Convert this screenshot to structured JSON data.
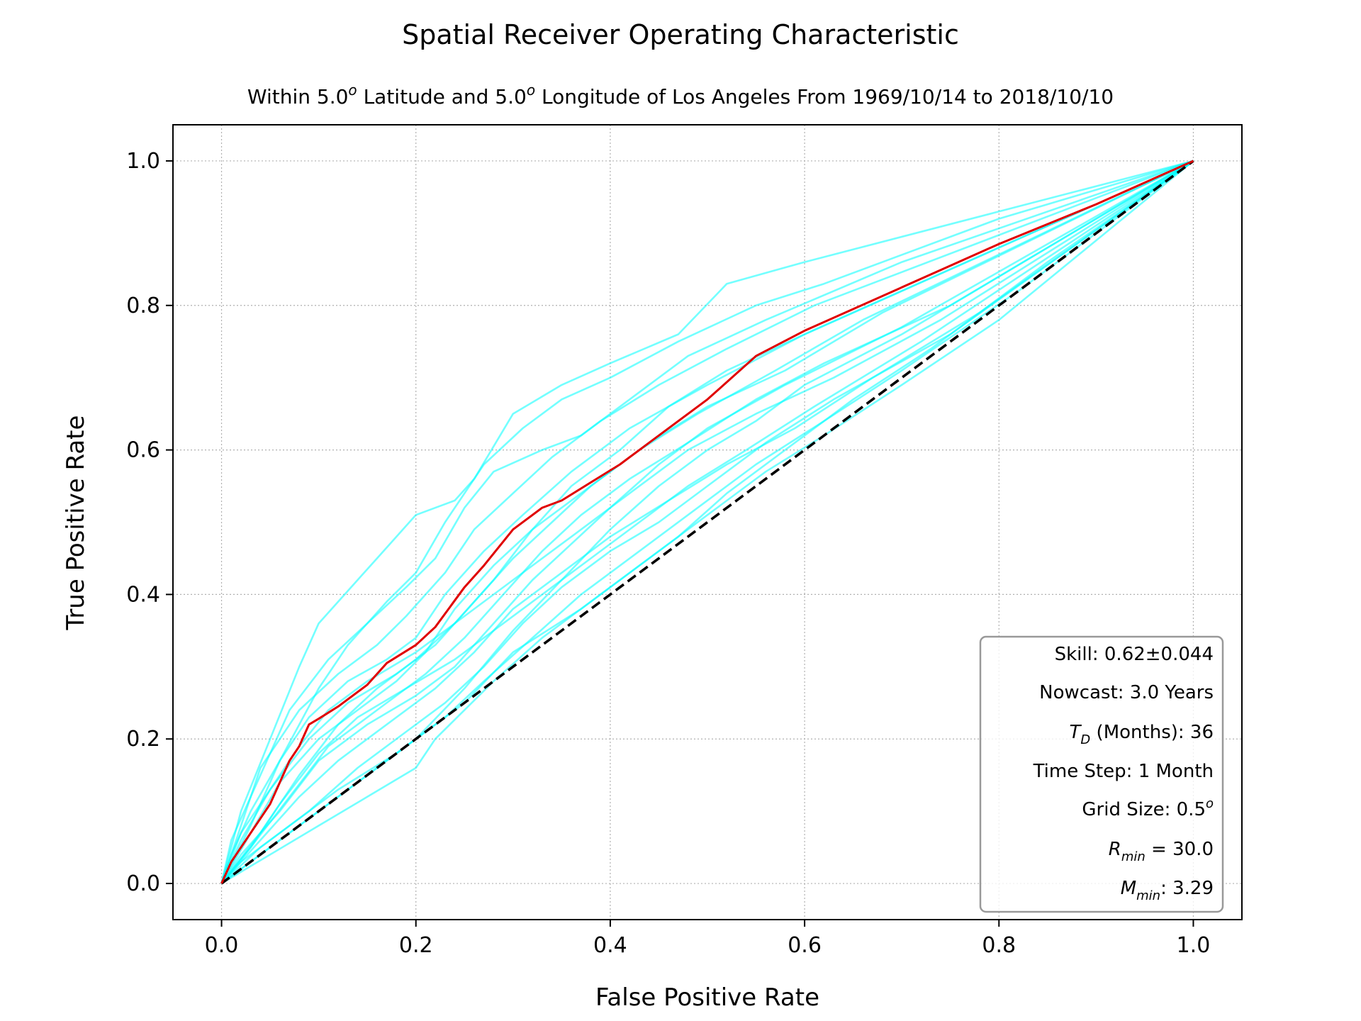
{
  "chart_data": {
    "type": "line",
    "title": "Spatial Receiver Operating Characteristic",
    "subtitle": {
      "prefix": "Within 5.0",
      "sup1": "o",
      "middle": " Latitude and 5.0",
      "sup2": "o",
      "suffix": " Longitude of Los Angeles From 1969/10/14 to 2018/10/10"
    },
    "xlabel": "False Positive Rate",
    "ylabel": "True Positive Rate",
    "xlim": [
      -0.05,
      1.05
    ],
    "ylim": [
      -0.05,
      1.05
    ],
    "xticks": [
      "0.0",
      "0.2",
      "0.4",
      "0.6",
      "0.8",
      "1.0"
    ],
    "yticks": [
      "0.0",
      "0.2",
      "0.4",
      "0.6",
      "0.8",
      "1.0"
    ],
    "grid": true,
    "colors": {
      "mean": "#e00000",
      "random": "#00ffff",
      "diagonal": "#000000"
    },
    "mean_curve": {
      "x": [
        0,
        0.01,
        0.02,
        0.03,
        0.04,
        0.05,
        0.06,
        0.07,
        0.08,
        0.09,
        0.1,
        0.12,
        0.15,
        0.17,
        0.2,
        0.22,
        0.25,
        0.27,
        0.3,
        0.33,
        0.35,
        0.38,
        0.41,
        0.45,
        0.5,
        0.55,
        0.6,
        0.7,
        0.8,
        0.9,
        1.0
      ],
      "y": [
        0,
        0.03,
        0.05,
        0.07,
        0.09,
        0.11,
        0.14,
        0.17,
        0.19,
        0.22,
        0.228,
        0.245,
        0.275,
        0.305,
        0.33,
        0.355,
        0.41,
        0.44,
        0.49,
        0.52,
        0.53,
        0.555,
        0.58,
        0.62,
        0.67,
        0.73,
        0.765,
        0.825,
        0.885,
        0.94,
        1.0
      ]
    },
    "diagonal": {
      "x": [
        0,
        1
      ],
      "y": [
        0,
        1
      ]
    },
    "random_curves": [
      {
        "x": [
          0,
          0.02,
          0.05,
          0.08,
          0.1,
          0.14,
          0.16,
          0.2,
          0.24,
          0.26,
          0.3,
          0.35,
          0.4,
          0.47,
          0.52,
          0.6,
          0.8,
          1.0
        ],
        "y": [
          0,
          0.1,
          0.2,
          0.3,
          0.36,
          0.42,
          0.45,
          0.51,
          0.53,
          0.56,
          0.65,
          0.69,
          0.72,
          0.76,
          0.83,
          0.86,
          0.93,
          1.0
        ]
      },
      {
        "x": [
          0,
          0.03,
          0.06,
          0.1,
          0.13,
          0.17,
          0.2,
          0.23,
          0.27,
          0.31,
          0.35,
          0.4,
          0.47,
          0.55,
          0.62,
          0.8,
          1.0
        ],
        "y": [
          0,
          0.08,
          0.17,
          0.27,
          0.33,
          0.39,
          0.43,
          0.5,
          0.58,
          0.63,
          0.67,
          0.7,
          0.75,
          0.8,
          0.83,
          0.92,
          1.0
        ]
      },
      {
        "x": [
          0,
          0.01,
          0.04,
          0.07,
          0.11,
          0.15,
          0.19,
          0.22,
          0.25,
          0.28,
          0.33,
          0.37,
          0.42,
          0.48,
          0.56,
          0.7,
          1.0
        ],
        "y": [
          0,
          0.06,
          0.15,
          0.24,
          0.31,
          0.36,
          0.41,
          0.45,
          0.52,
          0.57,
          0.6,
          0.62,
          0.67,
          0.73,
          0.78,
          0.86,
          1.0
        ]
      },
      {
        "x": [
          0,
          0.04,
          0.08,
          0.12,
          0.16,
          0.2,
          0.24,
          0.28,
          0.32,
          0.36,
          0.41,
          0.46,
          0.52,
          0.6,
          0.7,
          1.0
        ],
        "y": [
          0,
          0.07,
          0.15,
          0.22,
          0.27,
          0.31,
          0.36,
          0.42,
          0.49,
          0.55,
          0.6,
          0.66,
          0.71,
          0.76,
          0.82,
          1.0
        ]
      },
      {
        "x": [
          0,
          0.03,
          0.07,
          0.11,
          0.16,
          0.21,
          0.25,
          0.29,
          0.33,
          0.37,
          0.42,
          0.48,
          0.55,
          0.62,
          0.75,
          1.0
        ],
        "y": [
          0,
          0.05,
          0.12,
          0.19,
          0.24,
          0.29,
          0.34,
          0.4,
          0.46,
          0.51,
          0.56,
          0.61,
          0.67,
          0.72,
          0.8,
          1.0
        ]
      },
      {
        "x": [
          0,
          0.02,
          0.06,
          0.1,
          0.15,
          0.2,
          0.24,
          0.28,
          0.32,
          0.36,
          0.4,
          0.45,
          0.5,
          0.58,
          0.7,
          1.0
        ],
        "y": [
          0,
          0.04,
          0.1,
          0.17,
          0.22,
          0.26,
          0.3,
          0.36,
          0.42,
          0.47,
          0.52,
          0.58,
          0.63,
          0.69,
          0.77,
          1.0
        ]
      },
      {
        "x": [
          0,
          0.04,
          0.09,
          0.14,
          0.19,
          0.23,
          0.27,
          0.31,
          0.35,
          0.4,
          0.45,
          0.5,
          0.56,
          0.63,
          0.75,
          1.0
        ],
        "y": [
          0,
          0.05,
          0.1,
          0.16,
          0.21,
          0.25,
          0.3,
          0.36,
          0.41,
          0.46,
          0.5,
          0.55,
          0.61,
          0.67,
          0.76,
          1.0
        ]
      },
      {
        "x": [
          0,
          0.02,
          0.05,
          0.09,
          0.13,
          0.18,
          0.22,
          0.26,
          0.3,
          0.34,
          0.38,
          0.44,
          0.5,
          0.58,
          0.68,
          1.0
        ],
        "y": [
          0,
          0.06,
          0.13,
          0.2,
          0.25,
          0.29,
          0.33,
          0.39,
          0.45,
          0.5,
          0.55,
          0.61,
          0.66,
          0.71,
          0.79,
          1.0
        ]
      },
      {
        "x": [
          0,
          0.05,
          0.1,
          0.15,
          0.2,
          0.25,
          0.3,
          0.35,
          0.4,
          0.45,
          0.5,
          0.55,
          0.6,
          0.7,
          0.8,
          1.0
        ],
        "y": [
          0,
          0.05,
          0.1,
          0.15,
          0.2,
          0.27,
          0.35,
          0.42,
          0.49,
          0.55,
          0.6,
          0.64,
          0.69,
          0.76,
          0.84,
          1.0
        ]
      },
      {
        "x": [
          0,
          0.03,
          0.06,
          0.1,
          0.14,
          0.18,
          0.21,
          0.24,
          0.28,
          0.32,
          0.37,
          0.43,
          0.49,
          0.57,
          0.66,
          1.0
        ],
        "y": [
          0,
          0.07,
          0.14,
          0.2,
          0.24,
          0.28,
          0.32,
          0.38,
          0.44,
          0.49,
          0.54,
          0.6,
          0.65,
          0.71,
          0.78,
          1.0
        ]
      },
      {
        "x": [
          0,
          0.01,
          0.03,
          0.06,
          0.09,
          0.13,
          0.17,
          0.2,
          0.23,
          0.27,
          0.31,
          0.36,
          0.42,
          0.5,
          0.6,
          1.0
        ],
        "y": [
          0,
          0.04,
          0.1,
          0.17,
          0.23,
          0.28,
          0.31,
          0.34,
          0.4,
          0.46,
          0.51,
          0.57,
          0.63,
          0.69,
          0.76,
          1.0
        ]
      },
      {
        "x": [
          0,
          0.04,
          0.08,
          0.12,
          0.17,
          0.22,
          0.26,
          0.3,
          0.35,
          0.4,
          0.46,
          0.52,
          0.59,
          0.67,
          0.78,
          1.0
        ],
        "y": [
          0,
          0.06,
          0.12,
          0.17,
          0.22,
          0.27,
          0.32,
          0.38,
          0.43,
          0.48,
          0.53,
          0.58,
          0.63,
          0.7,
          0.79,
          1.0
        ]
      },
      {
        "x": [
          0,
          0.02,
          0.07,
          0.12,
          0.18,
          0.23,
          0.27,
          0.32,
          0.37,
          0.43,
          0.49,
          0.55,
          0.62,
          0.7,
          0.82,
          1.0
        ],
        "y": [
          0,
          0.03,
          0.08,
          0.13,
          0.18,
          0.23,
          0.28,
          0.34,
          0.4,
          0.46,
          0.52,
          0.58,
          0.64,
          0.71,
          0.82,
          1.0
        ]
      },
      {
        "x": [
          0,
          0.05,
          0.1,
          0.15,
          0.2,
          0.22,
          0.28,
          0.33,
          0.38,
          0.44,
          0.5,
          0.56,
          0.62,
          0.7,
          0.8,
          1.0
        ],
        "y": [
          0,
          0.04,
          0.08,
          0.12,
          0.16,
          0.2,
          0.28,
          0.34,
          0.39,
          0.45,
          0.51,
          0.57,
          0.62,
          0.69,
          0.78,
          1.0
        ]
      },
      {
        "x": [
          0,
          0.02,
          0.04,
          0.08,
          0.12,
          0.16,
          0.19,
          0.23,
          0.26,
          0.3,
          0.34,
          0.39,
          0.45,
          0.52,
          0.61,
          1.0
        ],
        "y": [
          0,
          0.08,
          0.16,
          0.24,
          0.29,
          0.33,
          0.37,
          0.43,
          0.49,
          0.54,
          0.59,
          0.64,
          0.69,
          0.74,
          0.8,
          1.0
        ]
      },
      {
        "x": [
          0,
          0.03,
          0.06,
          0.1,
          0.14,
          0.19,
          0.24,
          0.29,
          0.34,
          0.38,
          0.43,
          0.48,
          0.54,
          0.61,
          0.72,
          1.0
        ],
        "y": [
          0,
          0.05,
          0.11,
          0.18,
          0.23,
          0.27,
          0.31,
          0.36,
          0.41,
          0.45,
          0.5,
          0.55,
          0.6,
          0.66,
          0.75,
          1.0
        ]
      },
      {
        "x": [
          0,
          0.02,
          0.05,
          0.08,
          0.11,
          0.15,
          0.2,
          0.25,
          0.3,
          0.36,
          0.42,
          0.48,
          0.55,
          0.63,
          0.74,
          1.0
        ],
        "y": [
          0,
          0.07,
          0.13,
          0.19,
          0.24,
          0.28,
          0.32,
          0.37,
          0.42,
          0.48,
          0.54,
          0.6,
          0.65,
          0.7,
          0.78,
          1.0
        ]
      },
      {
        "x": [
          0,
          0.05,
          0.1,
          0.15,
          0.2,
          0.25,
          0.3,
          0.37,
          0.42,
          0.47,
          0.52,
          0.58,
          0.65,
          0.73,
          0.85,
          1.0
        ],
        "y": [
          0,
          0.05,
          0.1,
          0.15,
          0.2,
          0.25,
          0.32,
          0.38,
          0.43,
          0.48,
          0.54,
          0.6,
          0.67,
          0.74,
          0.86,
          1.0
        ]
      }
    ]
  },
  "info_box": {
    "skill": "Skill: 0.62±0.044",
    "nowcast": "Nowcast: 3.0 Years",
    "td_symbol": "T",
    "td_sub": "D",
    "td_rest": " (Months): 36",
    "timestep": "Time Step: 1 Month",
    "grid_prefix": "Grid Size: 0.5",
    "grid_sup": "o",
    "rmin_symbol": "R",
    "rmin_sub": "min",
    "rmin_rest": " = 30.0",
    "mmin_symbol": "M",
    "mmin_sub": "min",
    "mmin_rest": ": 3.29"
  }
}
